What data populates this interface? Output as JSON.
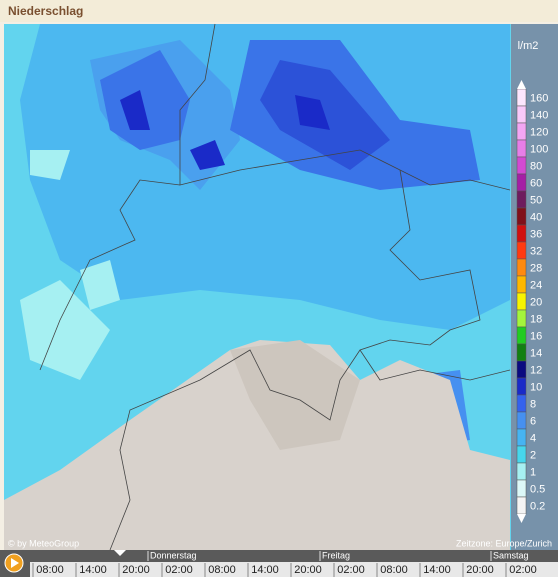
{
  "header": {
    "title": "Niederschlag"
  },
  "legend": {
    "unit": "l/m2",
    "items": [
      {
        "label": "160",
        "color": "#fde6fd"
      },
      {
        "label": "140",
        "color": "#f9c9f9"
      },
      {
        "label": "120",
        "color": "#f3a6f3"
      },
      {
        "label": "100",
        "color": "#e77ee7"
      },
      {
        "label": "80",
        "color": "#d24ad2"
      },
      {
        "label": "60",
        "color": "#a51fa5"
      },
      {
        "label": "50",
        "color": "#6e1c5e"
      },
      {
        "label": "40",
        "color": "#80101a"
      },
      {
        "label": "36",
        "color": "#d01010"
      },
      {
        "label": "32",
        "color": "#ff3a10"
      },
      {
        "label": "28",
        "color": "#ff8a10"
      },
      {
        "label": "24",
        "color": "#ffb800"
      },
      {
        "label": "20",
        "color": "#f8f400"
      },
      {
        "label": "18",
        "color": "#a4f43c"
      },
      {
        "label": "16",
        "color": "#22cc22"
      },
      {
        "label": "14",
        "color": "#128012"
      },
      {
        "label": "12",
        "color": "#0a0a80"
      },
      {
        "label": "10",
        "color": "#1a2ac8"
      },
      {
        "label": "8",
        "color": "#3462ee"
      },
      {
        "label": "6",
        "color": "#4690f0"
      },
      {
        "label": "4",
        "color": "#46b4f2"
      },
      {
        "label": "2",
        "color": "#46d6ec"
      },
      {
        "label": "1",
        "color": "#a6f0f2"
      },
      {
        "label": "0.5",
        "color": "#dcf8f8"
      },
      {
        "label": "0.2",
        "color": "#f4f4f4"
      }
    ]
  },
  "footer": {
    "copyright": "© by MeteoGroup",
    "timezone": "Zeitzone: Europe/Zurich"
  },
  "timeline": {
    "days": [
      "Donnerstag",
      "Freitag",
      "Samstag"
    ],
    "times": [
      "08:00",
      "14:00",
      "20:00",
      "02:00",
      "08:00",
      "14:00",
      "20:00",
      "02:00",
      "08:00",
      "14:00",
      "20:00",
      "02:00"
    ]
  }
}
